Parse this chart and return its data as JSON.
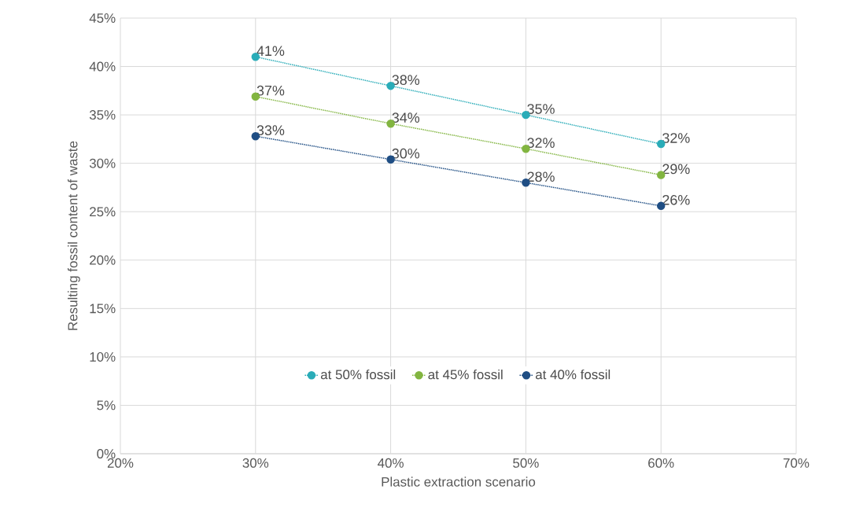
{
  "chart_data": {
    "type": "line",
    "xlabel": "Plastic extraction scenario",
    "ylabel": "Resulting fossil content of waste",
    "x": [
      30,
      40,
      50,
      60
    ],
    "series": [
      {
        "name": "at 50% fossil",
        "color": "#2aacb8",
        "values": [
          41,
          38,
          35,
          32
        ],
        "value_labels": [
          "41%",
          "38%",
          "35%",
          "32%"
        ]
      },
      {
        "name": "at 45% fossil",
        "color": "#82b540",
        "values": [
          36.9,
          34.1,
          31.5,
          28.8
        ],
        "value_labels": [
          "37%",
          "34%",
          "32%",
          "29%"
        ]
      },
      {
        "name": "at 40% fossil",
        "color": "#1f4e84",
        "values": [
          32.8,
          30.4,
          28.0,
          25.6
        ],
        "value_labels": [
          "33%",
          "30%",
          "28%",
          "26%"
        ]
      }
    ],
    "xlim": [
      20,
      70
    ],
    "xticks": [
      {
        "value": 20,
        "label": "20%"
      },
      {
        "value": 30,
        "label": "30%"
      },
      {
        "value": 40,
        "label": "40%"
      },
      {
        "value": 50,
        "label": "50%"
      },
      {
        "value": 60,
        "label": "60%"
      },
      {
        "value": 70,
        "label": "70%"
      }
    ],
    "ylim": [
      0,
      45
    ],
    "yticks": [
      {
        "value": 0,
        "label": "0%"
      },
      {
        "value": 5,
        "label": "5%"
      },
      {
        "value": 10,
        "label": "10%"
      },
      {
        "value": 15,
        "label": "15%"
      },
      {
        "value": 20,
        "label": "20%"
      },
      {
        "value": 25,
        "label": "25%"
      },
      {
        "value": 30,
        "label": "30%"
      },
      {
        "value": 35,
        "label": "35%"
      },
      {
        "value": 40,
        "label": "40%"
      },
      {
        "value": 45,
        "label": "45%"
      }
    ],
    "grid": true,
    "legend": "bottom",
    "marker": "circle",
    "line_style": "dotted"
  }
}
